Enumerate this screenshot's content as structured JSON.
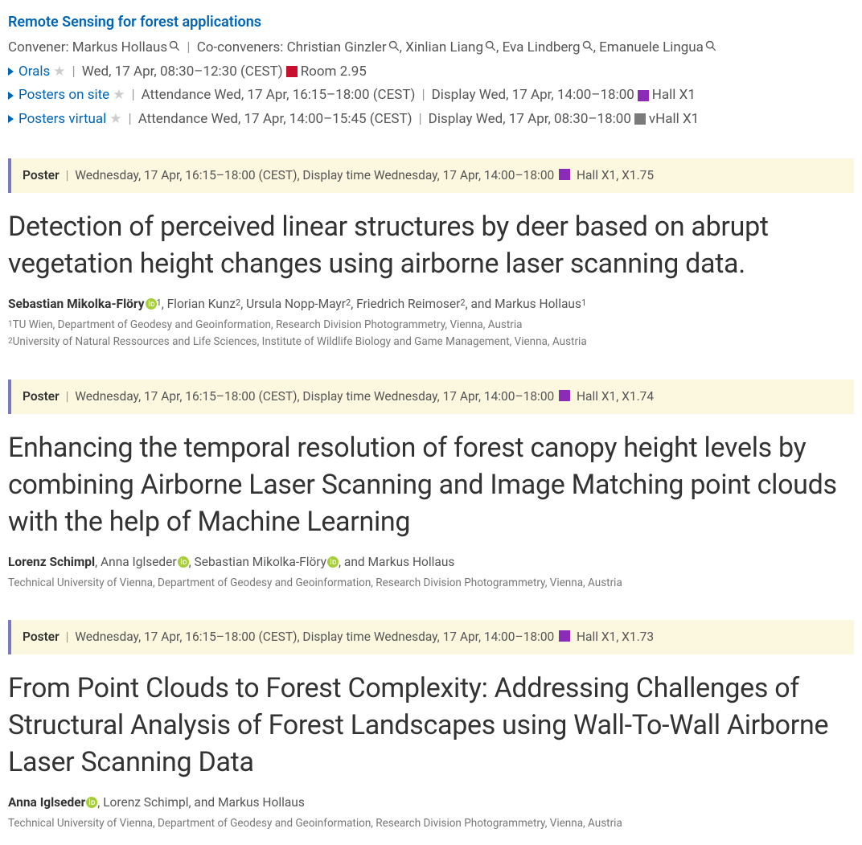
{
  "colors": {
    "link": "#0064b4",
    "room_red": "#c8102e",
    "room_purple": "#8b2bb8",
    "room_gray": "#7a7a7a",
    "banner_bg": "#fcf8e0",
    "banner_border": "#7a7abc",
    "orcid": "#a6ce39"
  },
  "session": {
    "title": "Remote Sensing for forest applications",
    "convener_label": "Convener:",
    "convener": "Markus Hollaus",
    "coconvener_label": "Co-conveners:",
    "coconveners": [
      "Christian Ginzler",
      "Xinlian Liang",
      "Eva Lindberg",
      "Emanuele Lingua"
    ],
    "orals": {
      "label": "Orals",
      "time": "Wed, 17 Apr, 08:30–12:30 (CEST)",
      "room": "Room 2.95",
      "room_color": "#c8102e"
    },
    "posters_onsite": {
      "label": "Posters on site",
      "attendance": "Attendance Wed, 17 Apr, 16:15–18:00 (CEST)",
      "display": "Display Wed, 17 Apr, 14:00–18:00",
      "room": "Hall X1",
      "room_color": "#8b2bb8"
    },
    "posters_virtual": {
      "label": "Posters virtual",
      "attendance": "Attendance Wed, 17 Apr, 14:00–15:45 (CEST)",
      "display": "Display Wed, 17 Apr, 08:30–18:00",
      "room": "vHall X1",
      "room_color": "#7a7a7a"
    }
  },
  "abstracts": [
    {
      "banner": {
        "type": "Poster",
        "time": "Wednesday, 17 Apr, 16:15–18:00 (CEST), Display time Wednesday, 17 Apr, 14:00–18:00",
        "room": "Hall X1, X1.75",
        "room_color": "#8b2bb8"
      },
      "title": "Detection of perceived linear structures by deer based on abrupt vegetation height changes using airborne laser scanning data.",
      "authors_html": "<span class='bold'>Sebastian Mikolka-Flöry</span>{orcid}<sup>1</sup>, Florian Kunz<sup>2</sup>, Ursula Nopp-Mayr<sup>2</sup>, Friedrich Reimoser<sup>2</sup>, and Markus Hollaus<sup>1</sup>",
      "affiliations": [
        "<sup>1</sup>TU Wien, Department of Geodesy and Geoinformation, Research Division Photogrammetry, Vienna, Austria",
        "<sup>2</sup>University of Natural Ressources and Life Sciences, Institute of Wildlife Biology and Game Management, Vienna, Austria"
      ]
    },
    {
      "banner": {
        "type": "Poster",
        "time": "Wednesday, 17 Apr, 16:15–18:00 (CEST), Display time Wednesday, 17 Apr, 14:00–18:00",
        "room": "Hall X1, X1.74",
        "room_color": "#8b2bb8"
      },
      "title": "Enhancing the temporal resolution of forest canopy height levels by combining Airborne Laser Scanning and Image Matching point clouds with the help of Machine Learning",
      "authors_html": "<span class='bold'>Lorenz Schimpl</span>, Anna Iglseder{orcid}, Sebastian Mikolka-Flöry{orcid}, and Markus Hollaus",
      "affiliations": [
        "Technical University of Vienna, Department of Geodesy and Geoinformation, Research Division Photogrammetry, Vienna, Austria"
      ]
    },
    {
      "banner": {
        "type": "Poster",
        "time": "Wednesday, 17 Apr, 16:15–18:00 (CEST), Display time Wednesday, 17 Apr, 14:00–18:00",
        "room": "Hall X1, X1.73",
        "room_color": "#8b2bb8"
      },
      "title": "From Point Clouds to Forest Complexity: Addressing Challenges of Structural Analysis of Forest Landscapes using Wall-To-Wall Airborne Laser Scanning Data",
      "authors_html": "<span class='bold'>Anna Iglseder</span>{orcid}, Lorenz Schimpl, and Markus Hollaus",
      "affiliations": [
        "Technical University of Vienna, Department of Geodesy and Geoinformation, Research Division Photogrammetry, Vienna, Austria"
      ]
    }
  ]
}
